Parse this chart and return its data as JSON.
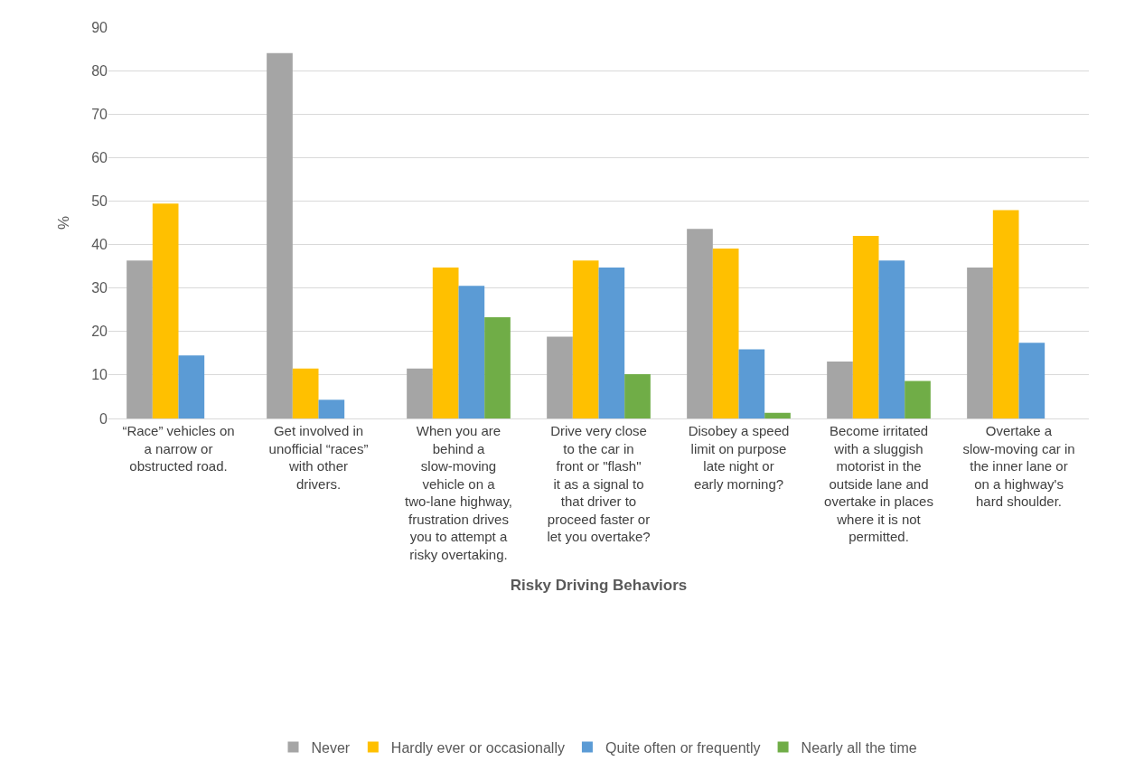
{
  "chart_data": {
    "type": "bar",
    "xlabel": "Risky Driving Behaviors",
    "ylabel": "%",
    "categories": [
      "“Race” vehicles on a narrow or obstructed road.",
      "Get involved in unofficial “races” with other drivers.",
      "When you are behind a slow-moving vehicle on a two-lane highway, frustration drives you to attempt a risky overtaking.",
      "Drive very close to the car in front or \"flash\" it as a signal to that driver to proceed faster or let you overtake?",
      "Disobey a speed limit on purpose late night or early morning?",
      "Become irritated with a sluggish motorist in the outside lane and overtake in places where it is not permitted.",
      "Overtake a slow-moving car in the inner lane or on a highway's hard shoulder."
    ],
    "series": [
      {
        "name": "Never",
        "color": "#a5a5a5",
        "values": [
          36.3,
          84,
          11.5,
          18.8,
          43.6,
          13.1,
          34.7
        ]
      },
      {
        "name": "Hardly ever or occasionally",
        "color": "#ffc000",
        "values": [
          49.4,
          11.5,
          34.7,
          36.3,
          39.1,
          42,
          47.9
        ]
      },
      {
        "name": "Quite often or frequently",
        "color": "#5b9bd5",
        "values": [
          14.5,
          4.3,
          30.5,
          34.7,
          15.9,
          36.3,
          17.4
        ]
      },
      {
        "name": "Nearly all the time",
        "color": "#70ad47",
        "values": [
          null,
          null,
          23.3,
          10.2,
          1.3,
          8.6,
          null
        ]
      }
    ],
    "ylim": [
      0,
      90
    ],
    "yticks": [
      0,
      10,
      20,
      30,
      40,
      50,
      60,
      70,
      80,
      90
    ],
    "grid": "y",
    "legend": "bottom"
  }
}
